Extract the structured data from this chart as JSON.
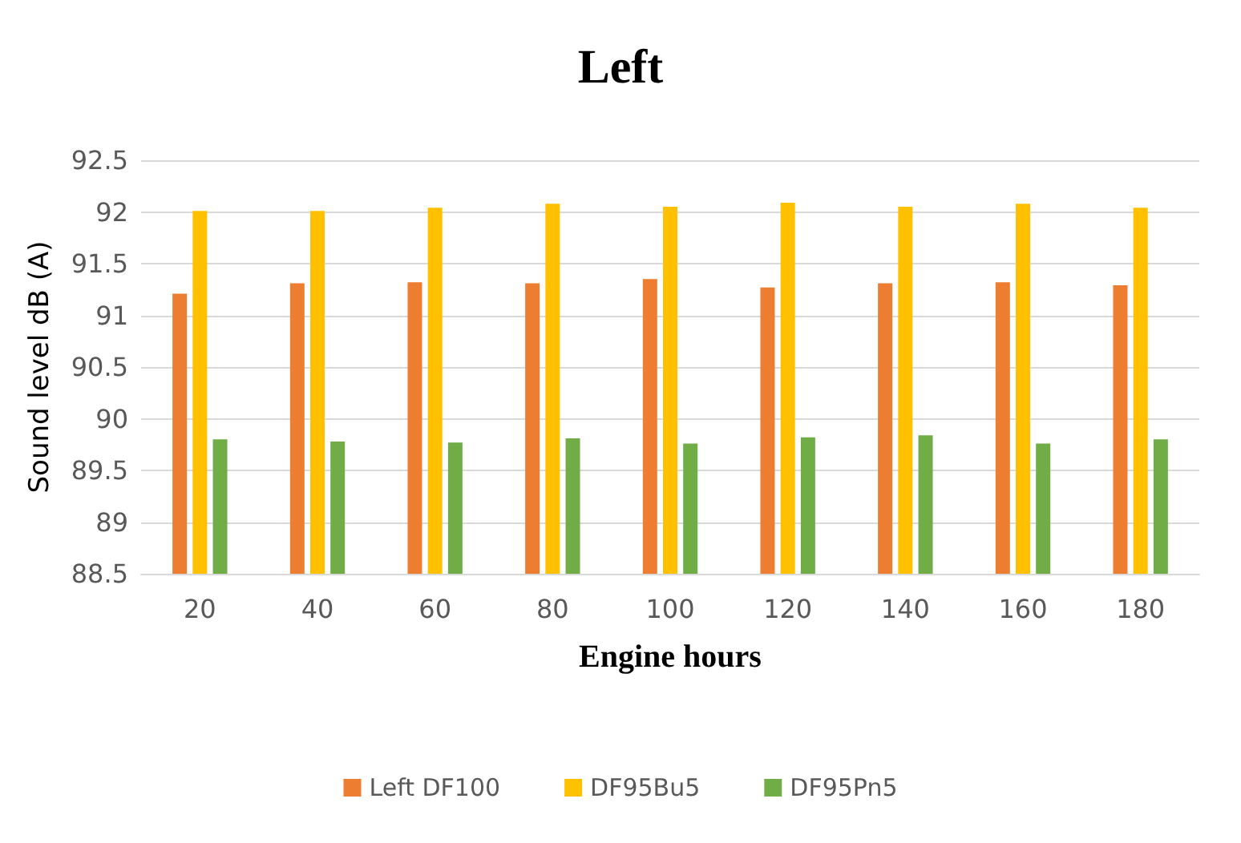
{
  "chart_data": {
    "type": "bar",
    "title": "Left",
    "xlabel": "Engine hours",
    "ylabel": "Sound level dB (A)",
    "categories": [
      "20",
      "40",
      "60",
      "80",
      "100",
      "120",
      "140",
      "160",
      "180"
    ],
    "series": [
      {
        "name": "Left DF100",
        "color": "#ed7d31",
        "values": [
          91.21,
          91.31,
          91.32,
          91.31,
          91.35,
          91.27,
          91.31,
          91.32,
          91.29
        ]
      },
      {
        "name": "DF95Bu5",
        "color": "#ffc000",
        "values": [
          92.01,
          92.01,
          92.04,
          92.08,
          92.05,
          92.09,
          92.05,
          92.08,
          92.04
        ]
      },
      {
        "name": "DF95Pn5",
        "color": "#70ad47",
        "values": [
          89.8,
          89.78,
          89.77,
          89.81,
          89.76,
          89.82,
          89.84,
          89.76,
          89.8
        ]
      }
    ],
    "ylim": [
      88.5,
      92.5
    ],
    "yticks": [
      88.5,
      89,
      89.5,
      90,
      90.5,
      91,
      91.5,
      92,
      92.5
    ],
    "grid": "y",
    "legend": "bottom"
  }
}
